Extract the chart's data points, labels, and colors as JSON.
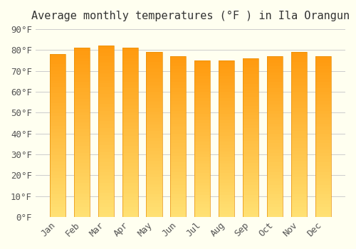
{
  "title": "Average monthly temperatures (°F ) in Ila Orangun",
  "months": [
    "Jan",
    "Feb",
    "Mar",
    "Apr",
    "May",
    "Jun",
    "Jul",
    "Aug",
    "Sep",
    "Oct",
    "Nov",
    "Dec"
  ],
  "values": [
    78,
    81,
    82,
    81,
    79,
    77,
    75,
    75,
    76,
    77,
    79,
    77
  ],
  "bar_color_top": "#FFA500",
  "bar_color_bottom": "#FFD580",
  "ylim": [
    0,
    90
  ],
  "yticks": [
    0,
    10,
    20,
    30,
    40,
    50,
    60,
    70,
    80,
    90
  ],
  "ytick_labels": [
    "0°F",
    "10°F",
    "20°F",
    "30°F",
    "40°F",
    "50°F",
    "60°F",
    "70°F",
    "80°F",
    "90°F"
  ],
  "background_color": "#FFFFF0",
  "grid_color": "#CCCCCC",
  "title_fontsize": 11,
  "tick_fontsize": 9,
  "bar_edge_color": "#E8900A",
  "bar_width": 0.65
}
